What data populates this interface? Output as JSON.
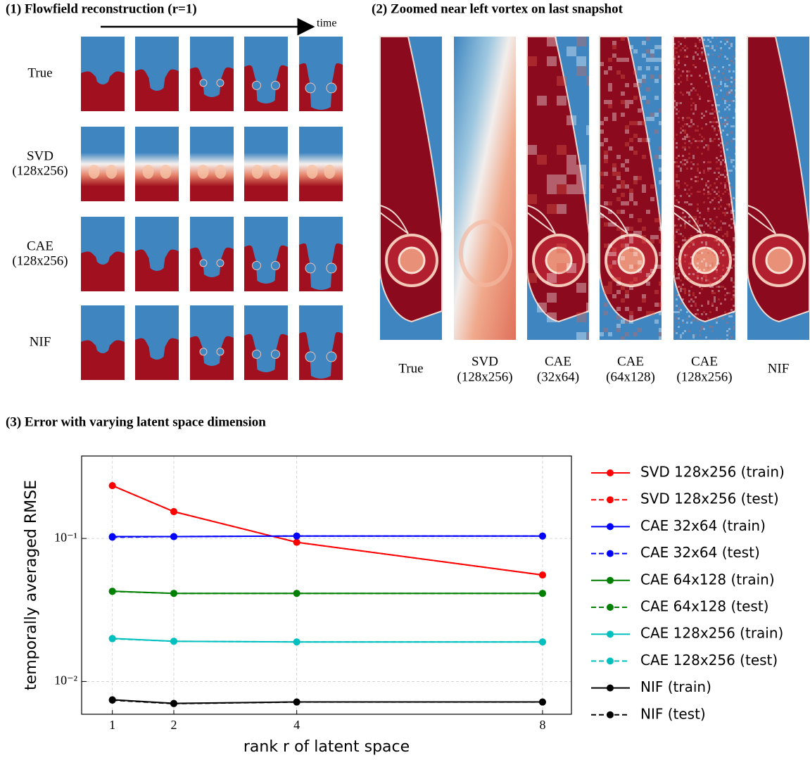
{
  "panel1": {
    "title": "(1) Flowfield reconstruction (r=1)",
    "time_label": "time",
    "rows": [
      [
        "True"
      ],
      [
        "SVD",
        "(128x256)"
      ],
      [
        "CAE",
        "(128x256)"
      ],
      [
        "NIF"
      ]
    ]
  },
  "panel2": {
    "title": "(2) Zoomed near left vortex on last snapshot",
    "columns": [
      [
        "True"
      ],
      [
        "SVD",
        "(128x256)"
      ],
      [
        "CAE",
        "(32x64)"
      ],
      [
        "CAE",
        "(64x128)"
      ],
      [
        "CAE",
        "(128x256)"
      ],
      [
        "NIF"
      ]
    ]
  },
  "chart_data": {
    "type": "line",
    "title": "(3) Error with varying latent space dimension",
    "xlabel": "rank r of latent space",
    "ylabel": "temporally averaged RMSE",
    "x": [
      1,
      2,
      4,
      8
    ],
    "xlim": [
      0.5,
      8.47
    ],
    "xticks": [
      1,
      2,
      4,
      8
    ],
    "ylim": [
      0.0059,
      0.377
    ],
    "yticks": [
      {
        "value": 0.1,
        "label": "10⁻¹"
      },
      {
        "value": 0.01,
        "label": "10⁻²"
      }
    ],
    "yscale": "log",
    "grid": true,
    "legend": "outside-right",
    "series": [
      {
        "name": "SVD 128x256 (train)",
        "color": "#ff0000",
        "linestyle": "solid",
        "values": [
          0.234,
          0.154,
          0.094,
          0.0555
        ]
      },
      {
        "name": "SVD 128x256 (test)",
        "color": "#ff0000",
        "linestyle": "dashed",
        "values": [
          0.234,
          0.154,
          0.094,
          0.0555
        ]
      },
      {
        "name": "CAE 32x64 (train)",
        "color": "#0000ff",
        "linestyle": "solid",
        "values": [
          0.103,
          0.103,
          0.104,
          0.104
        ]
      },
      {
        "name": "CAE 32x64 (test)",
        "color": "#0000ff",
        "linestyle": "dashed",
        "values": [
          0.102,
          0.103,
          0.104,
          0.104
        ]
      },
      {
        "name": "CAE 64x128 (train)",
        "color": "#008000",
        "linestyle": "solid",
        "values": [
          0.0428,
          0.0413,
          0.0413,
          0.0413
        ]
      },
      {
        "name": "CAE 64x128 (test)",
        "color": "#008000",
        "linestyle": "dashed",
        "values": [
          0.0426,
          0.0413,
          0.0413,
          0.0413
        ]
      },
      {
        "name": "CAE 128x256 (train)",
        "color": "#00bfbf",
        "linestyle": "solid",
        "values": [
          0.02,
          0.0191,
          0.0189,
          0.0189
        ]
      },
      {
        "name": "CAE 128x256 (test)",
        "color": "#00bfbf",
        "linestyle": "dashed",
        "values": [
          0.0199,
          0.0191,
          0.0189,
          0.0189
        ]
      },
      {
        "name": "NIF (train)",
        "color": "#000000",
        "linestyle": "solid",
        "values": [
          0.00745,
          0.00703,
          0.00719,
          0.00719
        ]
      },
      {
        "name": "NIF (test)",
        "color": "#000000",
        "linestyle": "dashed",
        "values": [
          0.0074,
          0.007,
          0.00718,
          0.00718
        ]
      }
    ]
  }
}
